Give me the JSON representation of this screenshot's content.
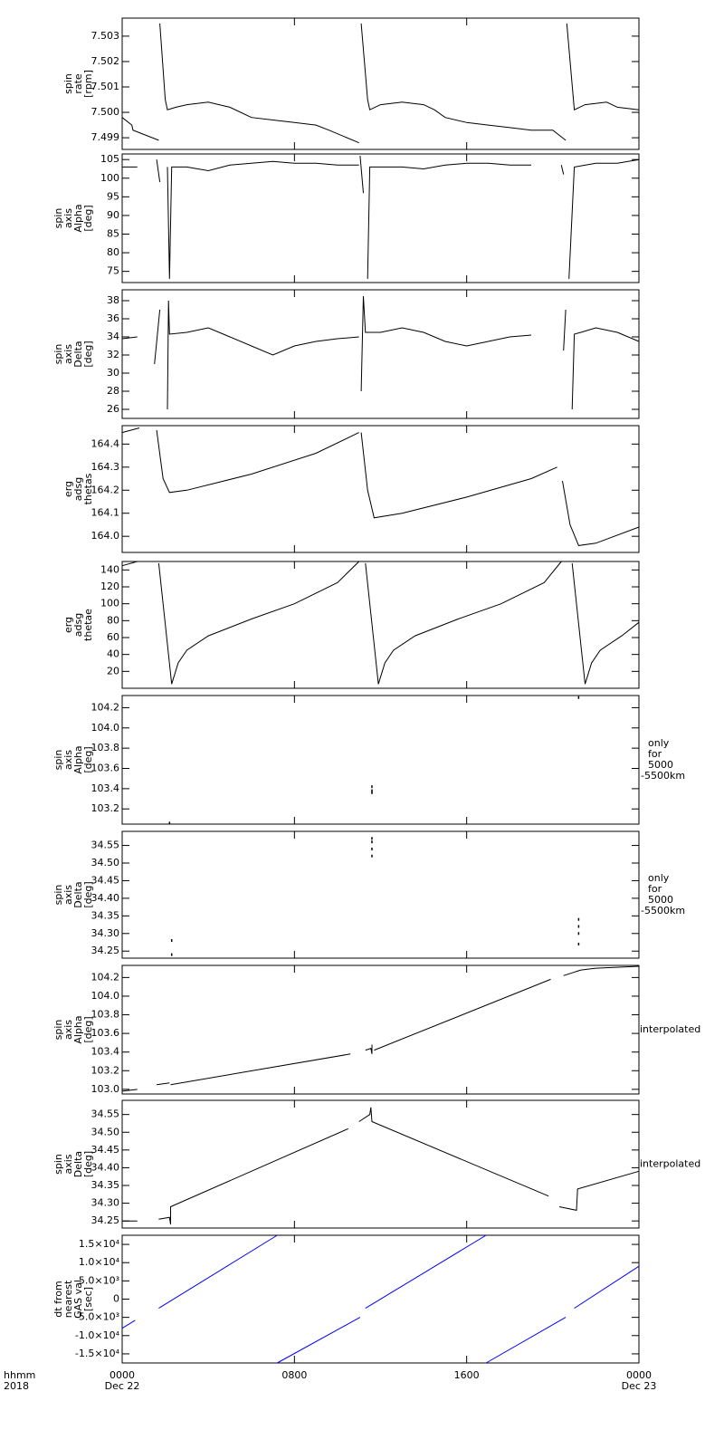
{
  "chart_data": [
    {
      "type": "line",
      "ylabel": [
        "spin",
        "rate",
        "[rpm]"
      ],
      "ylim": [
        7.49854,
        7.50371
      ],
      "yticks": [
        {
          "value": 7.499,
          "label": "7.499"
        },
        {
          "value": 7.5,
          "label": "7.500"
        },
        {
          "value": 7.501,
          "label": "7.501"
        },
        {
          "value": 7.502,
          "label": "7.502"
        },
        {
          "value": 7.503,
          "label": "7.503"
        }
      ],
      "series": [
        {
          "color": "#000000",
          "x": [
            0,
            0.45,
            0.5,
            1.7,
            1.72,
            1.75,
            2.0,
            2.1,
            2.5,
            3,
            4,
            4.5,
            5,
            6,
            7,
            8,
            9,
            9.6,
            11.0,
            11.05,
            11.1,
            11.4,
            11.5,
            12,
            13,
            14,
            14.5,
            15,
            16,
            17,
            18,
            19,
            20.0,
            20.6,
            20.62,
            20.65,
            21,
            21.5,
            22.5,
            23,
            24
          ],
          "values": [
            7.4998,
            7.4995,
            7.4993,
            7.4989,
            null,
            7.5035,
            7.5005,
            7.5001,
            7.5002,
            7.5003,
            7.5004,
            7.5003,
            7.5002,
            7.4998,
            7.4997,
            7.4996,
            7.4995,
            7.4993,
            7.4988,
            null,
            7.5035,
            7.5005,
            7.5001,
            7.5003,
            7.5004,
            7.5003,
            7.5001,
            7.4998,
            7.4996,
            7.4995,
            7.4994,
            7.4993,
            7.4993,
            7.4989,
            null,
            7.5035,
            7.5001,
            7.5003,
            7.5004,
            7.5002,
            7.5001
          ]
        }
      ]
    },
    {
      "type": "line",
      "ylabel": [
        "spin",
        "axis",
        "Alpha",
        "[deg]"
      ],
      "ylim": [
        72,
        106.5
      ],
      "yticks": [
        75,
        80,
        85,
        90,
        95,
        100,
        105
      ],
      "series": [
        {
          "color": "#000000",
          "x": [
            0,
            0.7,
            0.75,
            1.6,
            1.75,
            1.8,
            2.1,
            2.2,
            2.3,
            3,
            4,
            5,
            6,
            7,
            8,
            9,
            10,
            11,
            11.02,
            11.05,
            11.2,
            11.3,
            11.4,
            11.5,
            12,
            13,
            14,
            15,
            16,
            17,
            18,
            19,
            20.3,
            20.4,
            20.5,
            20.7,
            20.75,
            21,
            22,
            23,
            24
          ],
          "values": [
            103,
            103,
            null,
            105,
            99,
            null,
            103,
            73,
            103,
            103,
            102,
            103.5,
            104,
            104.5,
            104,
            104,
            103.5,
            103.5,
            null,
            106,
            96,
            null,
            73,
            103,
            103,
            103,
            102.5,
            103.5,
            104,
            104,
            103.5,
            103.5,
            null,
            103.5,
            101,
            null,
            73,
            103,
            104,
            104,
            105
          ]
        }
      ]
    },
    {
      "type": "line",
      "ylabel": [
        "spin",
        "axis",
        "Delta",
        "[deg]"
      ],
      "ylim": [
        25,
        39.2
      ],
      "yticks": [
        26,
        28,
        30,
        32,
        34,
        36,
        38
      ],
      "series": [
        {
          "color": "#000000",
          "x": [
            0,
            0.7,
            0.75,
            1.5,
            1.75,
            1.8,
            2.1,
            2.15,
            2.2,
            3,
            4,
            5,
            6,
            7,
            8,
            9,
            10,
            11,
            11.05,
            11.1,
            11.2,
            11.3,
            12,
            13,
            14,
            15,
            16,
            17,
            18,
            19,
            20,
            20.5,
            20.6,
            20.65,
            20.9,
            21,
            21.3,
            22,
            23,
            24
          ],
          "values": [
            33.8,
            34,
            null,
            31,
            37,
            null,
            26,
            38,
            34.3,
            34.5,
            35,
            34,
            33,
            32,
            33,
            33.5,
            33.8,
            34,
            null,
            28,
            38.5,
            34.5,
            34.5,
            35,
            34.5,
            33.5,
            33,
            33.5,
            34,
            34.2,
            null,
            32.5,
            37,
            null,
            26,
            34.3,
            34.5,
            35,
            34.5,
            33.5
          ]
        }
      ]
    },
    {
      "type": "line",
      "ylabel": [
        "erg",
        "adsg",
        "thetas"
      ],
      "ylim": [
        163.93,
        164.48
      ],
      "yticks": [
        {
          "value": 164.0,
          "label": "164.0"
        },
        164.1,
        164.2,
        164.3,
        164.4
      ],
      "series": [
        {
          "color": "#000000",
          "x": [
            0,
            0.8,
            0.85,
            1.6,
            1.9,
            2.2,
            3,
            6,
            9,
            11,
            11.05,
            11.1,
            11.4,
            11.7,
            13,
            16,
            19,
            20.2,
            20.3,
            20.45,
            20.8,
            21.2,
            22,
            24
          ],
          "values": [
            164.45,
            164.47,
            null,
            164.46,
            164.25,
            164.19,
            164.2,
            164.27,
            164.36,
            164.45,
            null,
            164.45,
            164.2,
            164.08,
            164.1,
            164.17,
            164.25,
            164.3,
            null,
            164.24,
            164.05,
            163.96,
            163.97,
            164.04
          ]
        }
      ]
    },
    {
      "type": "line",
      "ylabel": [
        "erg",
        "adsg",
        "thetae"
      ],
      "ylim": [
        0,
        150
      ],
      "yticks": [
        20,
        40,
        60,
        80,
        100,
        120,
        140
      ],
      "series": [
        {
          "color": "#000000",
          "x": [
            0,
            0.7,
            0.75,
            1.7,
            2.3,
            2.6,
            3,
            4,
            6,
            8,
            10,
            11,
            11.05,
            11.3,
            11.9,
            12.2,
            12.6,
            13.6,
            15.6,
            17.6,
            19.6,
            20.4,
            20.45,
            20.9,
            21.5,
            21.8,
            22.2,
            23.2,
            24
          ],
          "values": [
            145,
            150,
            null,
            148,
            5,
            30,
            45,
            62,
            82,
            100,
            125,
            150,
            null,
            148,
            5,
            30,
            45,
            62,
            82,
            100,
            125,
            150,
            null,
            148,
            5,
            30,
            45,
            62,
            78
          ]
        }
      ]
    },
    {
      "type": "scatter",
      "ylabel": [
        "spin",
        "axis",
        "Alpha",
        "[deg]"
      ],
      "ylim": [
        103.05,
        104.32
      ],
      "yticks": [
        103.2,
        103.4,
        103.6,
        103.8,
        {
          "value": 104.0,
          "label": "104.0"
        },
        104.2
      ],
      "annotation": [
        "only",
        "for",
        "5000",
        "-5500km"
      ],
      "series": [
        {
          "color": "#000000",
          "x": [
            2.2,
            11.6,
            11.6,
            11.6,
            21.2
          ],
          "values": [
            103.06,
            103.42,
            103.38,
            103.36,
            104.3
          ]
        }
      ]
    },
    {
      "type": "scatter",
      "ylabel": [
        "spin",
        "axis",
        "Delta",
        "[deg]"
      ],
      "ylim": [
        34.23,
        34.59
      ],
      "yticks": [
        34.25,
        {
          "value": 34.3,
          "label": "34.30"
        },
        34.35,
        {
          "value": 34.4,
          "label": "34.40"
        },
        34.45,
        {
          "value": 34.5,
          "label": "34.50"
        },
        34.55
      ],
      "annotation": [
        "only",
        "for",
        "5000",
        "-5500km"
      ],
      "series": [
        {
          "color": "#000000",
          "x": [
            2.3,
            2.3,
            11.6,
            11.6,
            11.6,
            11.6,
            21.2,
            21.2,
            21.2,
            21.2
          ],
          "values": [
            34.24,
            34.28,
            34.52,
            34.54,
            34.56,
            34.57,
            34.27,
            34.3,
            34.32,
            34.34
          ]
        }
      ]
    },
    {
      "type": "line",
      "ylabel": [
        "spin",
        "axis",
        "Alpha",
        "[deg]"
      ],
      "ylim": [
        102.95,
        104.33
      ],
      "yticks": [
        {
          "value": 103.0,
          "label": "103.0"
        },
        103.2,
        103.4,
        103.6,
        103.8,
        {
          "value": 104.0,
          "label": "104.0"
        },
        104.2
      ],
      "annotation": [
        "interpolated"
      ],
      "series": [
        {
          "color": "#000000",
          "x": [
            0,
            0.7,
            0.75,
            1.6,
            2.2,
            2.22,
            2.25,
            10.6,
            10.65,
            11.3,
            11.55,
            11.6,
            11.6,
            11.62,
            11.7,
            19.9,
            19.95,
            20.5,
            21.3,
            22,
            24
          ],
          "values": [
            102.98,
            103,
            null,
            103.05,
            103.07,
            null,
            103.05,
            103.38,
            null,
            103.42,
            103.44,
            103.38,
            103.48,
            null,
            103.42,
            104.18,
            null,
            104.22,
            104.28,
            104.3,
            104.32
          ]
        }
      ]
    },
    {
      "type": "line",
      "ylabel": [
        "spin",
        "axis",
        "Delta",
        "[deg]"
      ],
      "ylim": [
        34.23,
        34.59
      ],
      "yticks": [
        34.25,
        {
          "value": 34.3,
          "label": "34.30"
        },
        34.35,
        {
          "value": 34.4,
          "label": "34.40"
        },
        34.45,
        {
          "value": 34.5,
          "label": "34.50"
        },
        34.55
      ],
      "annotation": [
        "interpolated"
      ],
      "series": [
        {
          "color": "#000000",
          "x": [
            0,
            0.7,
            0.75,
            1.7,
            2.2,
            2.25,
            2.25,
            10.5,
            10.55,
            11,
            11.5,
            11.55,
            11.6,
            19.8,
            19.85,
            20.3,
            21.1,
            21.15,
            24
          ],
          "values": [
            34.25,
            34.25,
            null,
            34.255,
            34.26,
            34.24,
            34.29,
            34.51,
            null,
            34.53,
            34.55,
            34.57,
            34.53,
            34.32,
            null,
            34.29,
            34.28,
            34.34,
            34.39
          ]
        }
      ]
    },
    {
      "type": "line",
      "ylabel": [
        "dt from",
        "nearest",
        "GAS val",
        "[sec]"
      ],
      "ylim": [
        -17500,
        17500
      ],
      "yticks": [
        {
          "value": -15000,
          "label": "-1.5×10⁴"
        },
        {
          "value": -10000,
          "label": "-1.0×10⁴"
        },
        {
          "value": -5000,
          "label": "-5.0×10³"
        },
        0,
        {
          "value": 5000,
          "label": "5.0×10³"
        },
        {
          "value": 10000,
          "label": "1.0×10⁴"
        },
        {
          "value": 15000,
          "label": "1.5×10⁴"
        }
      ],
      "xlim": [
        0,
        24
      ],
      "xticks": [
        {
          "value": 0,
          "label": "0000"
        },
        {
          "value": 8,
          "label": "0800"
        },
        {
          "value": 16,
          "label": "1600"
        },
        {
          "value": 24,
          "label": "0000"
        }
      ],
      "x_tick_sublabels": [
        "Dec 22",
        null,
        null,
        "Dec 23"
      ],
      "x_axis_label": [
        "hhmm",
        "2018"
      ],
      "series": [
        {
          "color": "#0000ff",
          "x": [
            0,
            0.6,
            0.65,
            1.7,
            7.2,
            7.25,
            7.2,
            11.05,
            11.1,
            11.3,
            16.9,
            16.95,
            16.9,
            20.6,
            20.65,
            21,
            24
          ],
          "values": [
            -8000,
            -5800,
            null,
            -2500,
            17500,
            null,
            -17500,
            -5000,
            null,
            -2500,
            17500,
            null,
            -17500,
            -5000,
            null,
            -2500,
            9000
          ]
        }
      ]
    }
  ]
}
